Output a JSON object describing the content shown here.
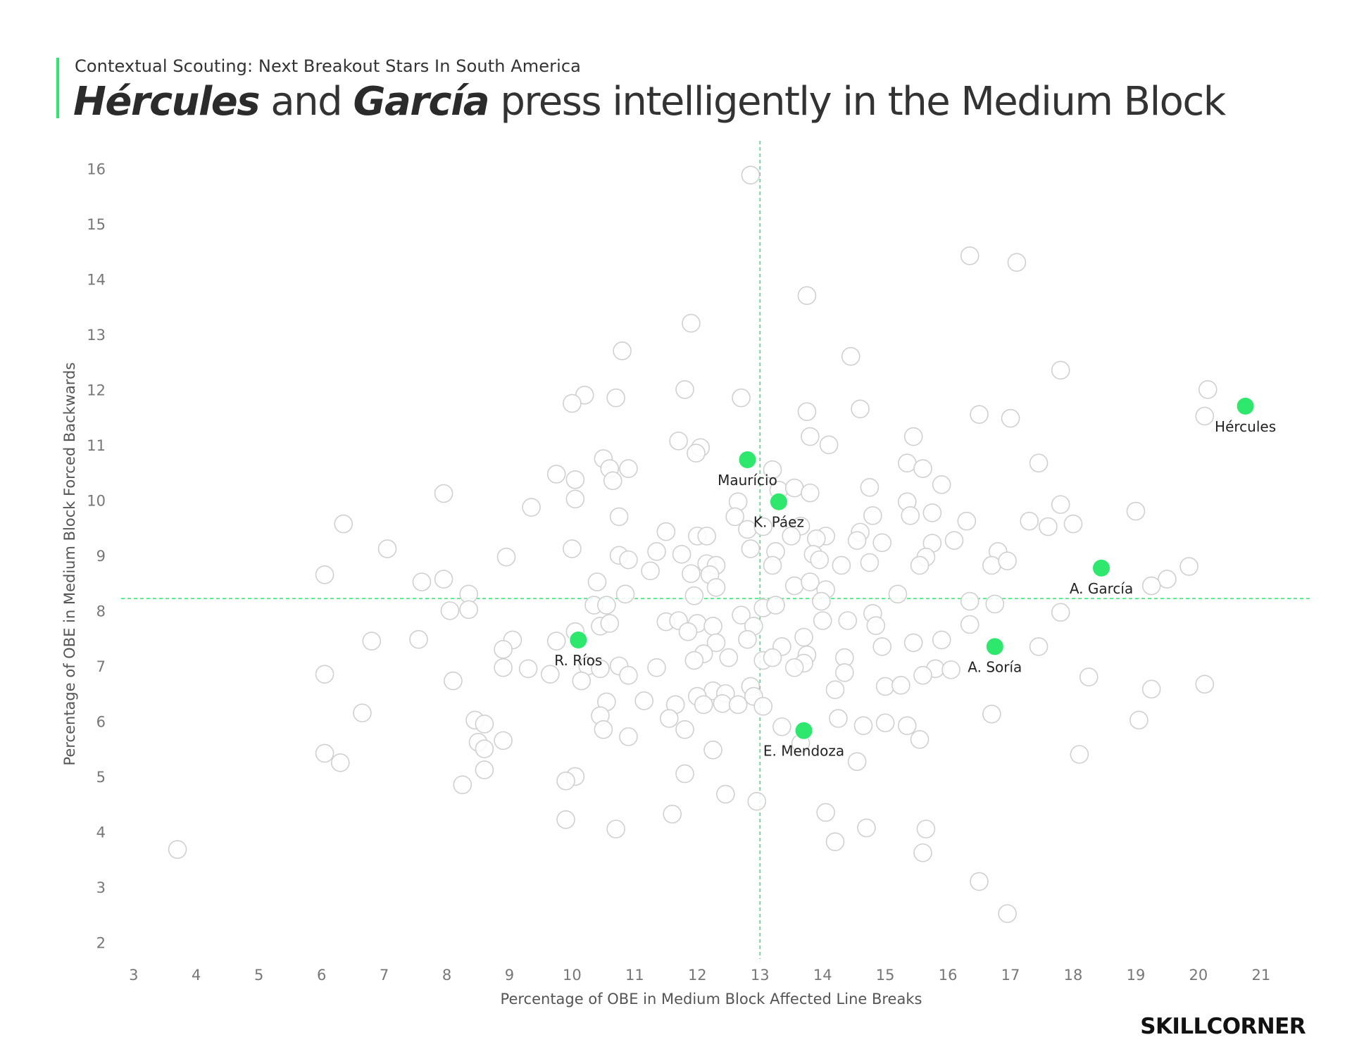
{
  "header": {
    "kicker": "Contextual Scouting: Next Breakout Stars In South America",
    "title_part1": "Hércules",
    "title_part2": " and ",
    "title_part3": "García",
    "title_part4": " press intelligently in the Medium Block"
  },
  "brand": {
    "logo_text": "SKILLCORNER"
  },
  "colors": {
    "highlight": "#2ee86e",
    "background_point_fill": "#ffffff",
    "background_point_stroke": "#d0d0d0",
    "reference_line": "#2ee86e"
  },
  "chart_data": {
    "type": "scatter",
    "xlabel": "Percentage of OBE in Medium Block Affected Line Breaks",
    "ylabel": "Percentage of OBE in Medium Block Forced Backwards",
    "xlim": [
      2.8,
      21.8
    ],
    "ylim": [
      1.7,
      16.5
    ],
    "xticks": [
      3,
      4,
      5,
      6,
      7,
      8,
      9,
      10,
      11,
      12,
      13,
      14,
      15,
      16,
      17,
      18,
      19,
      20,
      21
    ],
    "yticks": [
      2,
      3,
      4,
      5,
      6,
      7,
      8,
      9,
      10,
      11,
      12,
      13,
      14,
      15,
      16
    ],
    "reference_lines": {
      "x": 13.0,
      "y": 8.22
    },
    "grid": false,
    "legend": "none",
    "highlighted": [
      {
        "name": "Hércules",
        "x": 20.75,
        "y": 11.7
      },
      {
        "name": "A. García",
        "x": 18.45,
        "y": 8.77
      },
      {
        "name": "Maurício",
        "x": 12.8,
        "y": 10.73
      },
      {
        "name": "K. Páez",
        "x": 13.3,
        "y": 9.97
      },
      {
        "name": "A. Soría",
        "x": 16.75,
        "y": 7.35
      },
      {
        "name": "R. Ríos",
        "x": 10.1,
        "y": 7.47
      },
      {
        "name": "E. Mendoza",
        "x": 13.7,
        "y": 5.83
      }
    ],
    "others": [
      [
        12.85,
        15.88
      ],
      [
        16.35,
        14.42
      ],
      [
        17.1,
        14.3
      ],
      [
        13.75,
        13.7
      ],
      [
        11.9,
        13.2
      ],
      [
        10.8,
        12.7
      ],
      [
        14.45,
        12.6
      ],
      [
        17.8,
        12.35
      ],
      [
        20.15,
        12.0
      ],
      [
        11.8,
        12.0
      ],
      [
        10.2,
        11.9
      ],
      [
        10.7,
        11.85
      ],
      [
        10.0,
        11.75
      ],
      [
        12.7,
        11.85
      ],
      [
        13.75,
        11.6
      ],
      [
        14.6,
        11.65
      ],
      [
        16.5,
        11.55
      ],
      [
        17.0,
        11.48
      ],
      [
        20.1,
        11.52
      ],
      [
        13.8,
        11.15
      ],
      [
        14.1,
        11.0
      ],
      [
        15.45,
        11.15
      ],
      [
        11.7,
        11.07
      ],
      [
        12.05,
        10.95
      ],
      [
        11.98,
        10.85
      ],
      [
        10.5,
        10.75
      ],
      [
        10.6,
        10.57
      ],
      [
        10.9,
        10.57
      ],
      [
        9.75,
        10.47
      ],
      [
        10.05,
        10.37
      ],
      [
        10.65,
        10.35
      ],
      [
        13.2,
        10.55
      ],
      [
        15.35,
        10.67
      ],
      [
        15.6,
        10.57
      ],
      [
        17.45,
        10.67
      ],
      [
        13.3,
        10.18
      ],
      [
        13.55,
        10.22
      ],
      [
        13.8,
        10.13
      ],
      [
        14.75,
        10.23
      ],
      [
        15.9,
        10.28
      ],
      [
        7.95,
        10.12
      ],
      [
        10.05,
        10.02
      ],
      [
        12.65,
        9.97
      ],
      [
        15.35,
        9.97
      ],
      [
        17.8,
        9.92
      ],
      [
        9.35,
        9.87
      ],
      [
        14.8,
        9.72
      ],
      [
        15.4,
        9.72
      ],
      [
        15.75,
        9.77
      ],
      [
        19.0,
        9.8
      ],
      [
        10.75,
        9.7
      ],
      [
        12.6,
        9.7
      ],
      [
        12.8,
        9.47
      ],
      [
        13.05,
        9.52
      ],
      [
        13.65,
        9.53
      ],
      [
        11.5,
        9.43
      ],
      [
        16.3,
        9.62
      ],
      [
        17.3,
        9.62
      ],
      [
        17.6,
        9.52
      ],
      [
        18.0,
        9.57
      ],
      [
        6.35,
        9.57
      ],
      [
        14.6,
        9.42
      ],
      [
        12.0,
        9.35
      ],
      [
        12.15,
        9.35
      ],
      [
        14.05,
        9.35
      ],
      [
        14.55,
        9.27
      ],
      [
        14.95,
        9.23
      ],
      [
        15.75,
        9.22
      ],
      [
        16.1,
        9.27
      ],
      [
        13.5,
        9.35
      ],
      [
        13.9,
        9.3
      ],
      [
        7.05,
        9.12
      ],
      [
        10.0,
        9.12
      ],
      [
        11.35,
        9.07
      ],
      [
        12.85,
        9.12
      ],
      [
        13.25,
        9.07
      ],
      [
        13.85,
        9.02
      ],
      [
        16.8,
        9.07
      ],
      [
        11.75,
        9.02
      ],
      [
        10.75,
        9.0
      ],
      [
        10.9,
        8.92
      ],
      [
        8.95,
        8.97
      ],
      [
        13.95,
        8.92
      ],
      [
        14.75,
        8.87
      ],
      [
        15.65,
        8.97
      ],
      [
        12.15,
        8.85
      ],
      [
        12.3,
        8.82
      ],
      [
        13.2,
        8.82
      ],
      [
        14.3,
        8.82
      ],
      [
        15.55,
        8.82
      ],
      [
        16.7,
        8.82
      ],
      [
        16.95,
        8.9
      ],
      [
        19.85,
        8.8
      ],
      [
        11.25,
        8.72
      ],
      [
        11.9,
        8.67
      ],
      [
        12.2,
        8.65
      ],
      [
        10.4,
        8.52
      ],
      [
        7.6,
        8.52
      ],
      [
        7.95,
        8.57
      ],
      [
        6.05,
        8.65
      ],
      [
        13.55,
        8.45
      ],
      [
        13.8,
        8.52
      ],
      [
        19.5,
        8.57
      ],
      [
        19.25,
        8.45
      ],
      [
        12.3,
        8.42
      ],
      [
        14.05,
        8.38
      ],
      [
        10.85,
        8.3
      ],
      [
        15.2,
        8.3
      ],
      [
        8.35,
        8.3
      ],
      [
        11.95,
        8.27
      ],
      [
        10.35,
        8.1
      ],
      [
        10.55,
        8.1
      ],
      [
        13.05,
        8.05
      ],
      [
        13.25,
        8.1
      ],
      [
        13.98,
        8.17
      ],
      [
        16.35,
        8.17
      ],
      [
        16.75,
        8.12
      ],
      [
        8.05,
        8.0
      ],
      [
        8.35,
        8.02
      ],
      [
        14.8,
        7.95
      ],
      [
        17.8,
        7.97
      ],
      [
        12.7,
        7.92
      ],
      [
        11.5,
        7.8
      ],
      [
        11.7,
        7.82
      ],
      [
        12.0,
        7.77
      ],
      [
        12.25,
        7.72
      ],
      [
        12.9,
        7.72
      ],
      [
        10.45,
        7.72
      ],
      [
        10.6,
        7.77
      ],
      [
        14.0,
        7.82
      ],
      [
        14.4,
        7.82
      ],
      [
        14.85,
        7.73
      ],
      [
        16.35,
        7.75
      ],
      [
        11.85,
        7.62
      ],
      [
        10.05,
        7.62
      ],
      [
        12.8,
        7.48
      ],
      [
        13.7,
        7.52
      ],
      [
        12.3,
        7.42
      ],
      [
        9.05,
        7.47
      ],
      [
        9.75,
        7.45
      ],
      [
        15.45,
        7.42
      ],
      [
        15.9,
        7.47
      ],
      [
        6.8,
        7.45
      ],
      [
        7.55,
        7.48
      ],
      [
        13.35,
        7.35
      ],
      [
        14.95,
        7.35
      ],
      [
        17.45,
        7.35
      ],
      [
        8.9,
        7.3
      ],
      [
        12.1,
        7.22
      ],
      [
        13.75,
        7.2
      ],
      [
        13.05,
        7.1
      ],
      [
        13.2,
        7.15
      ],
      [
        14.35,
        7.15
      ],
      [
        12.5,
        7.15
      ],
      [
        13.7,
        7.05
      ],
      [
        11.95,
        7.1
      ],
      [
        10.25,
        7.0
      ],
      [
        10.45,
        6.95
      ],
      [
        10.75,
        7.0
      ],
      [
        8.9,
        6.97
      ],
      [
        9.3,
        6.95
      ],
      [
        11.35,
        6.97
      ],
      [
        13.55,
        6.97
      ],
      [
        14.35,
        6.88
      ],
      [
        15.8,
        6.95
      ],
      [
        16.05,
        6.93
      ],
      [
        9.65,
        6.85
      ],
      [
        10.9,
        6.83
      ],
      [
        15.6,
        6.83
      ],
      [
        6.05,
        6.85
      ],
      [
        10.15,
        6.73
      ],
      [
        8.1,
        6.73
      ],
      [
        18.25,
        6.8
      ],
      [
        12.85,
        6.63
      ],
      [
        15.0,
        6.63
      ],
      [
        15.25,
        6.65
      ],
      [
        14.2,
        6.57
      ],
      [
        19.25,
        6.58
      ],
      [
        20.1,
        6.67
      ],
      [
        12.9,
        6.45
      ],
      [
        12.25,
        6.55
      ],
      [
        12.45,
        6.5
      ],
      [
        12.0,
        6.45
      ],
      [
        10.55,
        6.35
      ],
      [
        11.15,
        6.37
      ],
      [
        11.65,
        6.3
      ],
      [
        12.1,
        6.3
      ],
      [
        12.4,
        6.32
      ],
      [
        12.65,
        6.3
      ],
      [
        13.05,
        6.27
      ],
      [
        10.45,
        6.1
      ],
      [
        11.55,
        6.05
      ],
      [
        14.25,
        6.05
      ],
      [
        16.7,
        6.13
      ],
      [
        6.65,
        6.15
      ],
      [
        8.45,
        6.02
      ],
      [
        8.6,
        5.95
      ],
      [
        19.05,
        6.02
      ],
      [
        15.0,
        5.97
      ],
      [
        15.35,
        5.92
      ],
      [
        14.65,
        5.92
      ],
      [
        10.5,
        5.85
      ],
      [
        11.8,
        5.85
      ],
      [
        13.35,
        5.9
      ],
      [
        8.9,
        5.65
      ],
      [
        8.5,
        5.62
      ],
      [
        10.9,
        5.72
      ],
      [
        15.55,
        5.67
      ],
      [
        13.65,
        5.6
      ],
      [
        8.6,
        5.5
      ],
      [
        12.25,
        5.48
      ],
      [
        6.05,
        5.42
      ],
      [
        18.1,
        5.4
      ],
      [
        6.3,
        5.25
      ],
      [
        14.55,
        5.27
      ],
      [
        8.6,
        5.12
      ],
      [
        11.8,
        5.05
      ],
      [
        10.05,
        5.0
      ],
      [
        9.9,
        4.92
      ],
      [
        8.25,
        4.85
      ],
      [
        12.45,
        4.68
      ],
      [
        12.95,
        4.55
      ],
      [
        11.6,
        4.32
      ],
      [
        14.05,
        4.35
      ],
      [
        9.9,
        4.22
      ],
      [
        10.7,
        4.05
      ],
      [
        14.7,
        4.07
      ],
      [
        15.65,
        4.05
      ],
      [
        14.2,
        3.82
      ],
      [
        15.6,
        3.62
      ],
      [
        3.7,
        3.68
      ],
      [
        16.5,
        3.1
      ],
      [
        16.95,
        2.52
      ]
    ]
  }
}
